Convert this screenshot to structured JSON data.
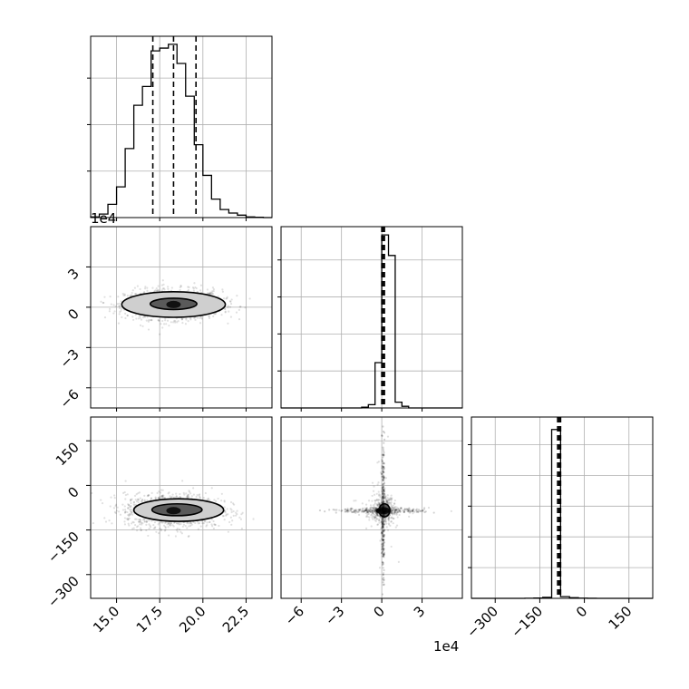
{
  "chart_data": {
    "type": "corner",
    "title": "",
    "grid": true,
    "parameters": [
      "param-1",
      "param-2",
      "param-3"
    ],
    "panels": [
      {
        "id": "hist-1",
        "type": "histogram",
        "xlim": [
          13.5,
          24.0
        ],
        "bins": [
          13.5,
          14.0,
          14.5,
          15.0,
          15.5,
          16.0,
          16.5,
          17.0,
          17.5,
          18.0,
          18.5,
          19.0,
          19.5,
          20.0,
          20.5,
          21.0,
          21.5,
          22.0,
          22.5,
          23.0,
          23.5,
          24.0
        ],
        "counts": [
          2,
          10,
          38,
          88,
          198,
          322,
          376,
          478,
          486,
          497,
          442,
          348,
          209,
          121,
          53,
          23,
          13,
          7,
          2,
          1,
          0
        ],
        "ymax": 520,
        "quantiles": [
          17.1,
          18.3,
          19.6
        ]
      },
      {
        "id": "hist-2",
        "type": "histogram",
        "xlim": [
          -7.5,
          6.0
        ],
        "bins": [
          -7.5,
          -7.0,
          -6.5,
          -6.0,
          -5.5,
          -5.0,
          -4.5,
          -4.0,
          -3.5,
          -3.0,
          -2.5,
          -2.0,
          -1.5,
          -1.0,
          -0.5,
          0.0,
          0.5,
          1.0,
          1.5,
          2.0,
          2.5,
          3.0,
          3.5,
          4.0,
          4.5,
          5.0,
          5.5,
          6.0
        ],
        "counts": [
          0,
          0,
          0,
          0,
          0,
          0,
          0,
          0,
          0,
          0,
          0,
          0,
          1,
          4,
          55,
          210,
          185,
          7,
          2,
          0,
          0,
          0,
          0,
          0,
          0,
          0,
          0
        ],
        "ymax": 220,
        "quantiles": [
          0.0,
          0.1,
          0.2
        ]
      },
      {
        "id": "hist-3",
        "type": "histogram",
        "xlim": [
          -380,
          230
        ],
        "bins": [
          -380,
          -350,
          -320,
          -290,
          -260,
          -230,
          -200,
          -170,
          -140,
          -110,
          -80,
          -50,
          -20,
          10,
          40,
          70,
          100,
          130,
          160,
          190,
          230
        ],
        "counts": [
          0,
          0,
          0,
          0,
          0,
          0,
          2,
          5,
          18,
          2980,
          30,
          12,
          3,
          1,
          0,
          0,
          0,
          0,
          0,
          0
        ],
        "ymax": 3200,
        "quantiles": [
          -90,
          -85,
          -80
        ]
      },
      {
        "id": "scatter-2-1",
        "type": "2d-density",
        "xlim": [
          13.5,
          24.0
        ],
        "ylim": [
          -7.5,
          6.0
        ],
        "center": [
          18.3,
          0.2
        ],
        "spread": [
          1.4,
          0.55
        ],
        "contours": [
          {
            "level": "outer",
            "cx": 18.3,
            "cy": 0.2,
            "rx": 3.0,
            "ry": 0.95
          },
          {
            "level": "inner",
            "cx": 18.3,
            "cy": 0.25,
            "rx": 1.35,
            "ry": 0.42
          }
        ]
      },
      {
        "id": "scatter-3-1",
        "type": "2d-density",
        "xlim": [
          13.5,
          24.0
        ],
        "ylim": [
          -380,
          230
        ],
        "center": [
          18.3,
          -85
        ],
        "spread": [
          1.4,
          28
        ],
        "contours": [
          {
            "level": "outer",
            "cx": 18.6,
            "cy": -83,
            "rx": 2.6,
            "ry": 38
          },
          {
            "level": "inner",
            "cx": 18.5,
            "cy": -82,
            "rx": 1.45,
            "ry": 20
          }
        ]
      },
      {
        "id": "scatter-3-2",
        "type": "2d-density",
        "xlim": [
          -7.5,
          6.0
        ],
        "ylim": [
          -380,
          230
        ],
        "center": [
          0.1,
          -85
        ],
        "spread": [
          0.45,
          22
        ],
        "contours": [
          {
            "level": "inner",
            "cx": 0.2,
            "cy": -84,
            "rx": 0.4,
            "ry": 22
          }
        ]
      }
    ],
    "axes": {
      "param1_ticks": [
        "15.0",
        "17.5",
        "20.0",
        "22.5"
      ],
      "param1_tick_values": [
        15.0,
        17.5,
        20.0,
        22.5
      ],
      "param2_ticks": [
        "3",
        "0",
        "−3",
        "−6"
      ],
      "param2_tick_values": [
        3,
        0,
        -3,
        -6
      ],
      "param2_x_ticks": [
        "−6",
        "−3",
        "0",
        "3"
      ],
      "param2_x_tick_values": [
        -6,
        -3,
        0,
        3
      ],
      "param3_ticks": [
        "150",
        "0",
        "−150",
        "−300"
      ],
      "param3_tick_values": [
        150,
        0,
        -150,
        -300
      ],
      "param3_x_ticks": [
        "−300",
        "−150",
        "0",
        "150"
      ],
      "param3_x_tick_values": [
        -300,
        -150,
        0,
        150
      ],
      "offset_left": "1e4",
      "offset_bottom": "1e4"
    },
    "colors": {
      "ink": "#000000",
      "grid": "#b0b0b0",
      "frame": "#000000"
    }
  }
}
